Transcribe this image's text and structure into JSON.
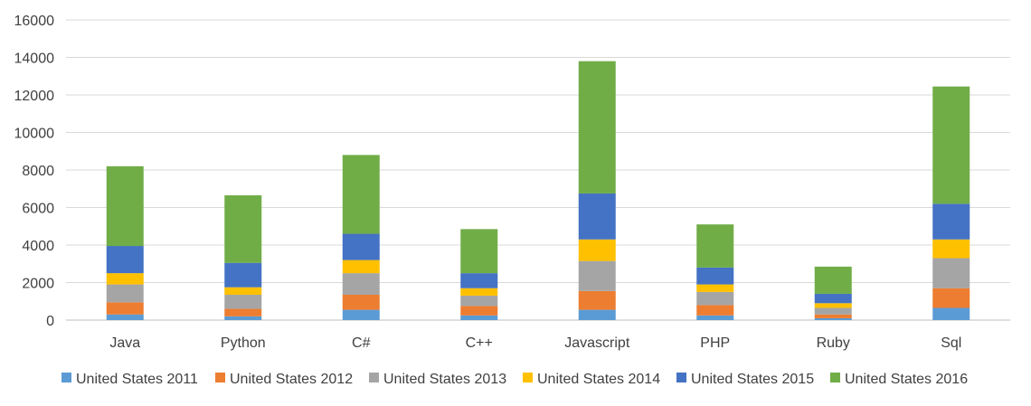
{
  "chart_data": {
    "type": "bar",
    "stacked": true,
    "categories": [
      "Java",
      "Python",
      "C#",
      "C++",
      "Javascript",
      "PHP",
      "Ruby",
      "Sql"
    ],
    "series": [
      {
        "name": "United States 2011",
        "color": "#5B9BD5",
        "values": [
          300,
          200,
          550,
          250,
          550,
          250,
          100,
          650
        ]
      },
      {
        "name": "United States 2012",
        "color": "#ED7D31",
        "values": [
          650,
          400,
          800,
          500,
          1000,
          550,
          200,
          1050
        ]
      },
      {
        "name": "United States 2013",
        "color": "#A5A5A5",
        "values": [
          950,
          750,
          1150,
          550,
          1600,
          700,
          350,
          1600
        ]
      },
      {
        "name": "United States 2014",
        "color": "#FFC000",
        "values": [
          600,
          400,
          700,
          400,
          1150,
          400,
          250,
          1000
        ]
      },
      {
        "name": "United States 2015",
        "color": "#4472C4",
        "values": [
          1450,
          1300,
          1400,
          800,
          2450,
          900,
          500,
          1900
        ]
      },
      {
        "name": "United States 2016",
        "color": "#70AD47",
        "values": [
          4250,
          3600,
          4200,
          2350,
          7050,
          2300,
          1450,
          6250
        ]
      }
    ],
    "title": "",
    "xlabel": "",
    "ylabel": "",
    "ylim": [
      0,
      16000
    ],
    "yticks": [
      "0",
      "2000",
      "4000",
      "6000",
      "8000",
      "10000",
      "12000",
      "14000",
      "16000"
    ],
    "grid": true,
    "legend_position": "bottom"
  }
}
